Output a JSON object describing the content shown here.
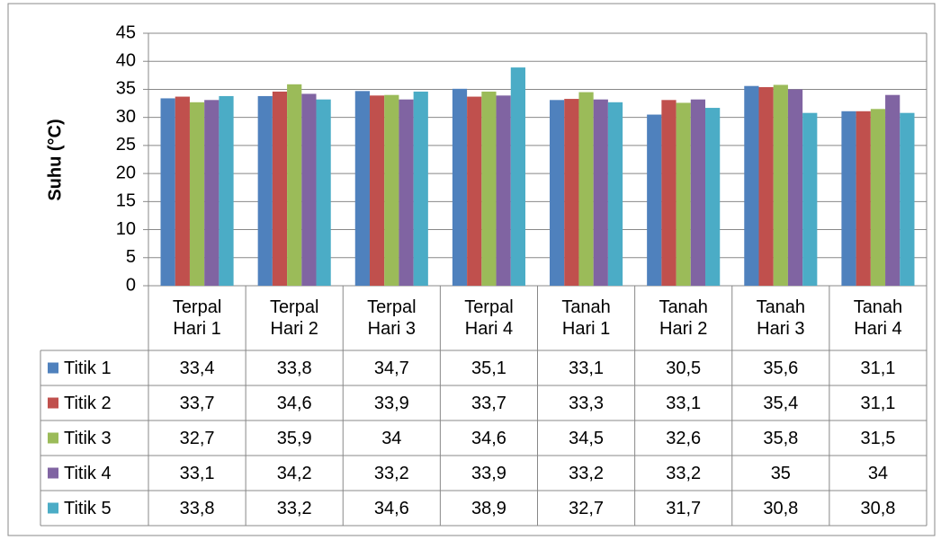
{
  "chart_data": {
    "type": "bar",
    "y_label": "Suhu (°C)",
    "categories": [
      "Terpal Hari 1",
      "Terpal Hari 2",
      "Terpal Hari 3",
      "Terpal Hari 4",
      "Tanah Hari 1",
      "Tanah Hari 2",
      "Tanah Hari 3",
      "Tanah Hari 4"
    ],
    "series": [
      {
        "name": "Titik 1",
        "color": "#4f81bd",
        "values": [
          33.4,
          33.8,
          34.7,
          35.1,
          33.1,
          30.5,
          35.6,
          31.1
        ],
        "value_labels": [
          "33,4",
          "33,8",
          "34,7",
          "35,1",
          "33,1",
          "30,5",
          "35,6",
          "31,1"
        ]
      },
      {
        "name": "Titik 2",
        "color": "#c0504d",
        "values": [
          33.7,
          34.6,
          33.9,
          33.7,
          33.3,
          33.1,
          35.4,
          31.1
        ],
        "value_labels": [
          "33,7",
          "34,6",
          "33,9",
          "33,7",
          "33,3",
          "33,1",
          "35,4",
          "31,1"
        ]
      },
      {
        "name": "Titik 3",
        "color": "#9bbb59",
        "values": [
          32.7,
          35.9,
          34,
          34.6,
          34.5,
          32.6,
          35.8,
          31.5
        ],
        "value_labels": [
          "32,7",
          "35,9",
          "34",
          "34,6",
          "34,5",
          "32,6",
          "35,8",
          "31,5"
        ]
      },
      {
        "name": "Titik 4",
        "color": "#8064a2",
        "values": [
          33.1,
          34.2,
          33.2,
          33.9,
          33.2,
          33.2,
          35,
          34
        ],
        "value_labels": [
          "33,1",
          "34,2",
          "33,2",
          "33,9",
          "33,2",
          "33,2",
          "35",
          "34"
        ]
      },
      {
        "name": "Titik 5",
        "color": "#4bacc6",
        "values": [
          33.8,
          33.2,
          34.6,
          38.9,
          32.7,
          31.7,
          30.8,
          30.8
        ],
        "value_labels": [
          "33,8",
          "33,2",
          "34,6",
          "38,9",
          "32,7",
          "31,7",
          "30,8",
          "30,8"
        ]
      }
    ],
    "ylim": [
      0,
      45
    ],
    "yticks": [
      0,
      5,
      10,
      15,
      20,
      25,
      30,
      35,
      40,
      45
    ],
    "grid": true
  }
}
